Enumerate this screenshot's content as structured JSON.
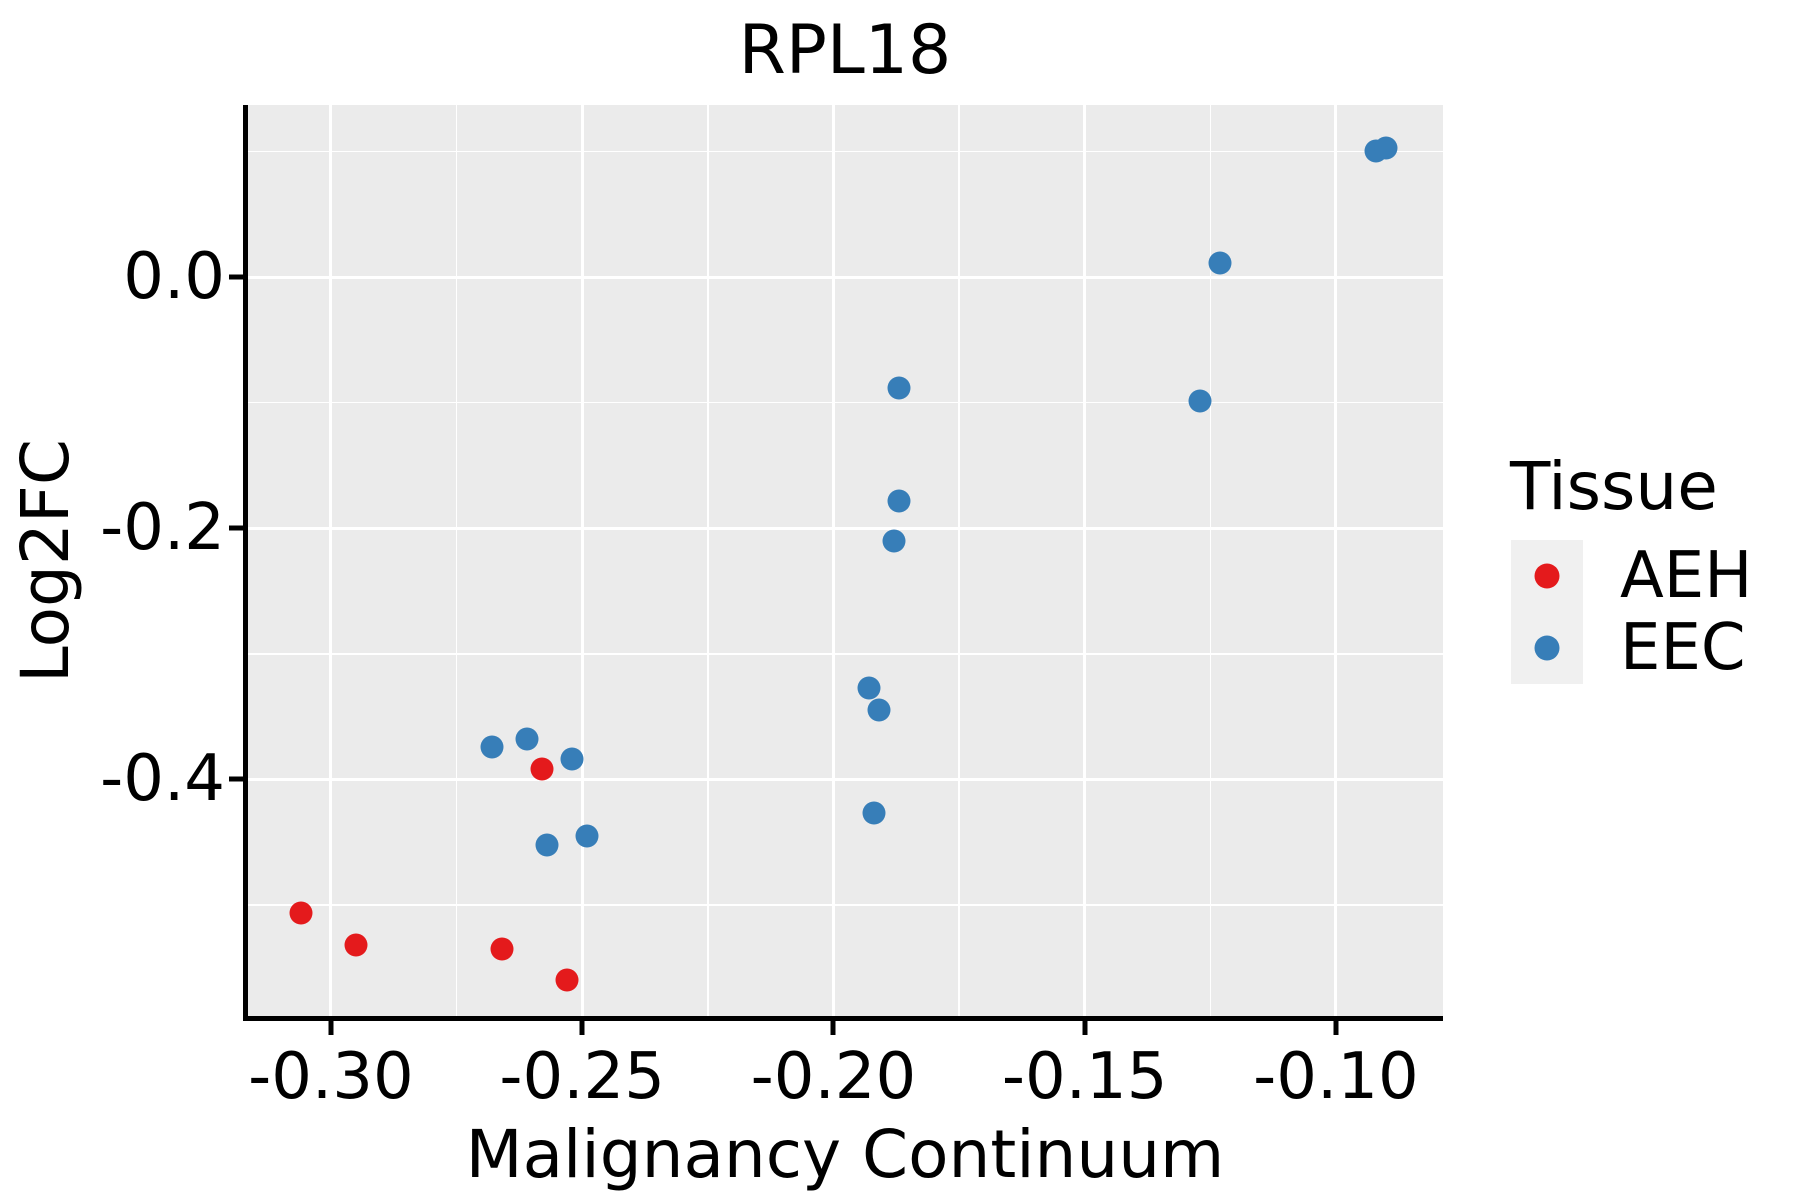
{
  "title": "RPL18",
  "x_axis": {
    "label": "Malignancy Continuum",
    "tick_labels": [
      "-0.30",
      "-0.25",
      "-0.20",
      "-0.15",
      "-0.10"
    ],
    "tick_values": [
      -0.3,
      -0.25,
      -0.2,
      -0.15,
      -0.1
    ],
    "minor_grid_values": [
      -0.275,
      -0.225,
      -0.175,
      -0.125
    ]
  },
  "y_axis": {
    "label": "Log2FC",
    "tick_labels": [
      "0.0",
      "-0.2",
      "-0.4"
    ],
    "tick_values": [
      0.0,
      -0.2,
      -0.4
    ],
    "minor_grid_values": [
      0.1,
      -0.1,
      -0.3,
      -0.5
    ]
  },
  "legend": {
    "title": "Tissue",
    "items": [
      {
        "label": "AEH",
        "color": "#E41A1C"
      },
      {
        "label": "EEC",
        "color": "#377EB8"
      }
    ]
  },
  "colors": {
    "panel_background": "#EBEBEB",
    "gridline": "#FFFFFF",
    "axis": "#000000",
    "text": "#000000",
    "legend_key_background": "#F0F0F0",
    "aeh": "#E41A1C",
    "eec": "#377EB8"
  },
  "chart_data": {
    "type": "scatter",
    "title": "RPL18",
    "xlabel": "Malignancy Continuum",
    "ylabel": "Log2FC",
    "xlim": [
      -0.3167,
      -0.0787
    ],
    "ylim": [
      -0.59,
      0.137
    ],
    "grid": "on",
    "legend_position": "right",
    "series": [
      {
        "name": "AEH",
        "color": "#E41A1C",
        "points": [
          [
            -0.306,
            -0.506
          ],
          [
            -0.295,
            -0.532
          ],
          [
            -0.266,
            -0.535
          ],
          [
            -0.258,
            -0.392
          ],
          [
            -0.253,
            -0.56
          ]
        ]
      },
      {
        "name": "EEC",
        "color": "#377EB8",
        "points": [
          [
            -0.268,
            -0.374
          ],
          [
            -0.261,
            -0.368
          ],
          [
            -0.257,
            -0.452
          ],
          [
            -0.252,
            -0.384
          ],
          [
            -0.249,
            -0.445
          ],
          [
            -0.193,
            -0.327
          ],
          [
            -0.192,
            -0.427
          ],
          [
            -0.191,
            -0.345
          ],
          [
            -0.188,
            -0.21
          ],
          [
            -0.187,
            -0.178
          ],
          [
            -0.187,
            -0.088
          ],
          [
            -0.127,
            -0.099
          ],
          [
            -0.123,
            0.011
          ],
          [
            -0.092,
            0.1
          ],
          [
            -0.09,
            0.103
          ]
        ]
      }
    ]
  }
}
